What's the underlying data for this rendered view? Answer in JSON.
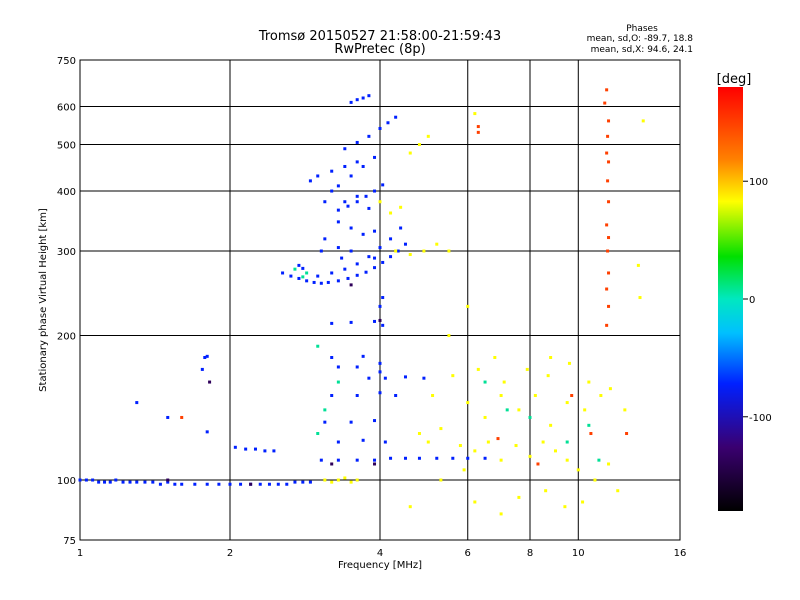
{
  "chart_data": {
    "type": "scatter",
    "title_line1": "Tromsø 20150527 21:58:00-21:59:43",
    "title_line2": "RwPretec (8p)",
    "phases_title": "Phases",
    "phases_o": "mean, sd,O:  -89.7, 18.8",
    "phases_x": "mean, sd,X:  94.6, 24.1",
    "xlabel": "Frequency [MHz]",
    "ylabel": "Stationary phase Virtual Height [km]",
    "xscale": "log",
    "yscale": "log",
    "xlim": [
      1,
      16
    ],
    "ylim": [
      75,
      750
    ],
    "xticks": [
      1,
      2,
      4,
      6,
      8,
      10,
      16
    ],
    "xtick_labels": [
      "1",
      "2",
      "4",
      "6",
      "8",
      "10",
      "16"
    ],
    "yticks": [
      75,
      100,
      200,
      300,
      400,
      500,
      600,
      750
    ],
    "ytick_labels": [
      "75",
      "100",
      "200",
      "300",
      "400",
      "500",
      "600",
      "750"
    ],
    "grid": true,
    "colorbar": {
      "label": "[deg]",
      "range": [
        -180,
        180
      ],
      "ticks": [
        100,
        0,
        -100
      ],
      "tick_labels": [
        "100",
        "0",
        "-100"
      ]
    },
    "series": [
      {
        "phase": -100,
        "points": [
          [
            1.0,
            100
          ],
          [
            1.03,
            100
          ],
          [
            1.06,
            100
          ],
          [
            1.09,
            99
          ],
          [
            1.12,
            99
          ],
          [
            1.15,
            99
          ],
          [
            1.18,
            100
          ],
          [
            1.22,
            99
          ],
          [
            1.26,
            99
          ],
          [
            1.3,
            99
          ],
          [
            1.35,
            99
          ],
          [
            1.4,
            99
          ],
          [
            1.45,
            98
          ],
          [
            1.5,
            99
          ],
          [
            1.55,
            98
          ],
          [
            1.6,
            98
          ],
          [
            1.7,
            98
          ],
          [
            1.8,
            98
          ],
          [
            1.9,
            98
          ],
          [
            2.0,
            98
          ],
          [
            2.1,
            98
          ],
          [
            2.2,
            98
          ],
          [
            2.3,
            98
          ],
          [
            2.4,
            98
          ],
          [
            2.5,
            98
          ],
          [
            2.6,
            98
          ],
          [
            2.7,
            99
          ],
          [
            2.8,
            99
          ],
          [
            2.9,
            99
          ],
          [
            1.78,
            180
          ],
          [
            1.8,
            181
          ],
          [
            1.76,
            170
          ],
          [
            2.05,
            117
          ],
          [
            2.15,
            116
          ],
          [
            2.25,
            116
          ],
          [
            2.35,
            115
          ],
          [
            2.45,
            115
          ],
          [
            1.5,
            135
          ],
          [
            1.3,
            145
          ],
          [
            1.8,
            126
          ],
          [
            3.05,
            110
          ],
          [
            3.3,
            110
          ],
          [
            3.6,
            110
          ],
          [
            3.9,
            110
          ],
          [
            4.2,
            111
          ],
          [
            4.5,
            111
          ],
          [
            4.8,
            111
          ],
          [
            5.2,
            111
          ],
          [
            5.6,
            111
          ],
          [
            6.0,
            111
          ],
          [
            6.5,
            111
          ],
          [
            3.1,
            132
          ],
          [
            3.5,
            132
          ],
          [
            3.9,
            133
          ],
          [
            3.3,
            120
          ],
          [
            3.7,
            121
          ],
          [
            4.1,
            120
          ],
          [
            3.2,
            150
          ],
          [
            3.6,
            150
          ],
          [
            4.0,
            152
          ],
          [
            4.3,
            150
          ],
          [
            3.8,
            163
          ],
          [
            4.1,
            163
          ],
          [
            4.5,
            164
          ],
          [
            4.9,
            163
          ],
          [
            3.3,
            172
          ],
          [
            3.6,
            172
          ],
          [
            4.0,
            175
          ],
          [
            3.2,
            180
          ],
          [
            3.7,
            181
          ],
          [
            4.0,
            168
          ],
          [
            3.2,
            212
          ],
          [
            3.5,
            213
          ],
          [
            3.9,
            214
          ],
          [
            4.05,
            210
          ],
          [
            2.55,
            270
          ],
          [
            2.65,
            266
          ],
          [
            2.75,
            263
          ],
          [
            2.85,
            260
          ],
          [
            2.95,
            258
          ],
          [
            3.05,
            257
          ],
          [
            3.15,
            258
          ],
          [
            3.3,
            260
          ],
          [
            3.45,
            263
          ],
          [
            3.6,
            267
          ],
          [
            3.75,
            271
          ],
          [
            3.9,
            277
          ],
          [
            4.05,
            284
          ],
          [
            4.2,
            292
          ],
          [
            4.35,
            300
          ],
          [
            4.5,
            310
          ],
          [
            2.75,
            280
          ],
          [
            2.8,
            276
          ],
          [
            3.0,
            266
          ],
          [
            3.2,
            270
          ],
          [
            3.4,
            275
          ],
          [
            3.6,
            282
          ],
          [
            3.8,
            292
          ],
          [
            4.0,
            305
          ],
          [
            4.2,
            318
          ],
          [
            4.4,
            335
          ],
          [
            3.3,
            365
          ],
          [
            3.45,
            372
          ],
          [
            3.6,
            380
          ],
          [
            3.75,
            390
          ],
          [
            3.9,
            400
          ],
          [
            4.05,
            412
          ],
          [
            3.2,
            400
          ],
          [
            3.4,
            380
          ],
          [
            3.6,
            390
          ],
          [
            3.8,
            368
          ],
          [
            3.3,
            410
          ],
          [
            3.5,
            430
          ],
          [
            3.7,
            450
          ],
          [
            3.9,
            470
          ],
          [
            3.4,
            490
          ],
          [
            3.6,
            505
          ],
          [
            3.8,
            520
          ],
          [
            4.0,
            540
          ],
          [
            4.15,
            555
          ],
          [
            4.3,
            570
          ],
          [
            3.5,
            612
          ],
          [
            3.6,
            620
          ],
          [
            3.7,
            625
          ],
          [
            3.8,
            632
          ],
          [
            3.3,
            345
          ],
          [
            3.5,
            335
          ],
          [
            3.7,
            325
          ],
          [
            3.9,
            330
          ],
          [
            3.1,
            318
          ],
          [
            3.3,
            305
          ],
          [
            3.5,
            300
          ],
          [
            3.2,
            440
          ],
          [
            3.4,
            450
          ],
          [
            3.1,
            380
          ],
          [
            4.0,
            230
          ],
          [
            4.05,
            240
          ],
          [
            3.0,
            430
          ],
          [
            2.9,
            420
          ],
          [
            3.6,
            460
          ],
          [
            3.9,
            290
          ],
          [
            3.05,
            300
          ],
          [
            3.35,
            290
          ]
        ]
      },
      {
        "phase": 0,
        "points": [
          [
            2.8,
            265
          ],
          [
            2.7,
            275
          ],
          [
            2.85,
            270
          ],
          [
            3.0,
            190
          ],
          [
            3.1,
            140
          ],
          [
            3.3,
            160
          ],
          [
            3.0,
            125
          ],
          [
            6.5,
            160
          ],
          [
            7.2,
            140
          ],
          [
            9.5,
            120
          ],
          [
            11.0,
            110
          ],
          [
            8.0,
            135
          ],
          [
            10.5,
            130
          ]
        ]
      },
      {
        "phase": 100,
        "points": [
          [
            3.1,
            100
          ],
          [
            3.2,
            99
          ],
          [
            3.3,
            100
          ],
          [
            3.4,
            101
          ],
          [
            3.5,
            99
          ],
          [
            3.6,
            100
          ],
          [
            4.0,
            380
          ],
          [
            4.2,
            360
          ],
          [
            4.4,
            370
          ],
          [
            4.6,
            480
          ],
          [
            4.8,
            500
          ],
          [
            5.0,
            520
          ],
          [
            4.3,
            300
          ],
          [
            4.6,
            295
          ],
          [
            4.9,
            300
          ],
          [
            5.2,
            310
          ],
          [
            5.5,
            300
          ],
          [
            4.8,
            125
          ],
          [
            5.0,
            120
          ],
          [
            5.3,
            128
          ],
          [
            5.8,
            118
          ],
          [
            6.2,
            115
          ],
          [
            6.6,
            120
          ],
          [
            7.0,
            110
          ],
          [
            7.5,
            118
          ],
          [
            8.0,
            112
          ],
          [
            8.5,
            120
          ],
          [
            9.0,
            115
          ],
          [
            9.5,
            110
          ],
          [
            10.0,
            105
          ],
          [
            10.8,
            100
          ],
          [
            11.5,
            108
          ],
          [
            12.0,
            95
          ],
          [
            6.0,
            145
          ],
          [
            6.5,
            135
          ],
          [
            7.0,
            150
          ],
          [
            7.6,
            140
          ],
          [
            8.2,
            150
          ],
          [
            8.8,
            130
          ],
          [
            9.5,
            145
          ],
          [
            10.3,
            140
          ],
          [
            11.1,
            150
          ],
          [
            5.6,
            165
          ],
          [
            6.3,
            170
          ],
          [
            7.1,
            160
          ],
          [
            7.9,
            170
          ],
          [
            8.7,
            165
          ],
          [
            9.6,
            175
          ],
          [
            10.5,
            160
          ],
          [
            11.6,
            155
          ],
          [
            5.1,
            150
          ],
          [
            12.4,
            140
          ],
          [
            6.2,
            90
          ],
          [
            7.0,
            85
          ],
          [
            7.6,
            92
          ],
          [
            8.6,
            95
          ],
          [
            9.4,
            88
          ],
          [
            10.2,
            90
          ],
          [
            4.6,
            88
          ],
          [
            5.3,
            100
          ],
          [
            5.9,
            105
          ],
          [
            6.2,
            580
          ],
          [
            13.5,
            560
          ],
          [
            13.2,
            280
          ],
          [
            13.3,
            240
          ],
          [
            5.5,
            200
          ],
          [
            6.8,
            180
          ],
          [
            8.8,
            180
          ],
          [
            6.0,
            230
          ]
        ]
      },
      {
        "phase": 160,
        "points": [
          [
            11.4,
            650
          ],
          [
            11.3,
            610
          ],
          [
            11.5,
            560
          ],
          [
            11.45,
            520
          ],
          [
            11.4,
            480
          ],
          [
            11.5,
            460
          ],
          [
            11.45,
            420
          ],
          [
            11.5,
            380
          ],
          [
            11.4,
            340
          ],
          [
            11.5,
            320
          ],
          [
            11.45,
            300
          ],
          [
            11.5,
            270
          ],
          [
            11.4,
            250
          ],
          [
            11.5,
            230
          ],
          [
            11.4,
            210
          ],
          [
            6.3,
            545
          ],
          [
            6.3,
            530
          ],
          [
            1.6,
            135
          ],
          [
            9.7,
            150
          ],
          [
            10.6,
            125
          ],
          [
            8.3,
            108
          ],
          [
            6.9,
            122
          ],
          [
            12.5,
            125
          ]
        ]
      },
      {
        "phase": -140,
        "points": [
          [
            1.82,
            160
          ],
          [
            1.5,
            100
          ],
          [
            2.2,
            98
          ],
          [
            4.0,
            215
          ],
          [
            3.5,
            255
          ],
          [
            3.9,
            108
          ],
          [
            3.2,
            108
          ]
        ]
      }
    ]
  }
}
